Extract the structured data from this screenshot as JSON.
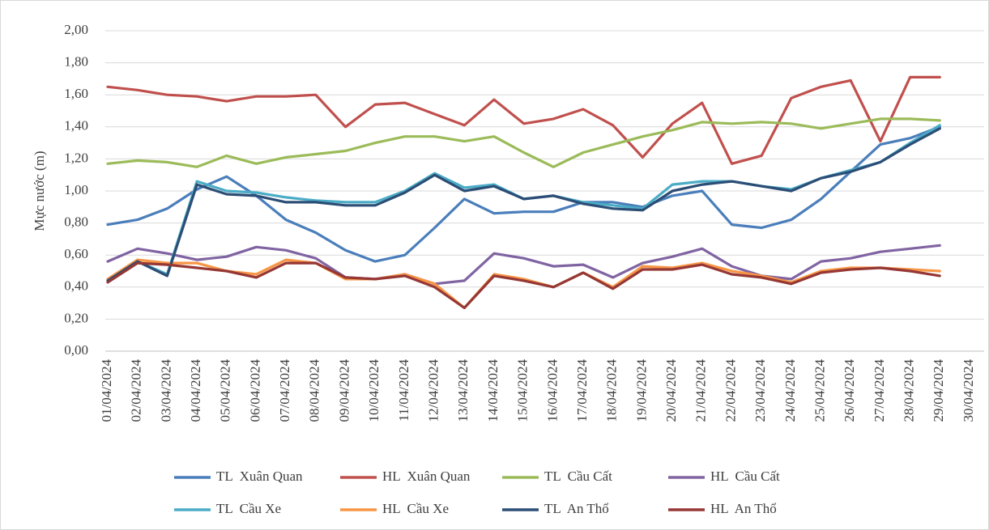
{
  "chart_data": {
    "type": "line",
    "y_label": "Mực nước (m)",
    "categories": [
      "01/04/2024",
      "02/04/2024",
      "03/04/2024",
      "04/04/2024",
      "05/04/2024",
      "06/04/2024",
      "07/04/2024",
      "08/04/2024",
      "09/04/2024",
      "10/04/2024",
      "11/04/2024",
      "12/04/2024",
      "13/04/2024",
      "14/04/2024",
      "15/04/2024",
      "16/04/2024",
      "17/04/2024",
      "18/04/2024",
      "19/04/2024",
      "20/04/2024",
      "21/04/2024",
      "22/04/2024",
      "23/04/2024",
      "24/04/2024",
      "25/04/2024",
      "26/04/2024",
      "27/04/2024",
      "28/04/2024",
      "29/04/2024",
      "30/04/2024"
    ],
    "series": [
      {
        "name": "TL  Xuân Quan",
        "color": "#4a7ebb",
        "values": [
          0.79,
          0.82,
          0.89,
          1.01,
          1.09,
          0.97,
          0.82,
          0.74,
          0.63,
          0.56,
          0.6,
          0.77,
          0.95,
          0.86,
          0.87,
          0.87,
          0.93,
          0.93,
          0.9,
          0.97,
          1.0,
          0.79,
          0.77,
          0.82,
          0.95,
          1.12,
          1.29,
          1.33,
          1.4,
          null
        ]
      },
      {
        "name": "HL  Xuân Quan",
        "color": "#c0504d",
        "values": [
          1.65,
          1.63,
          1.6,
          1.59,
          1.56,
          1.59,
          1.59,
          1.6,
          1.4,
          1.54,
          1.55,
          1.48,
          1.41,
          1.57,
          1.42,
          1.45,
          1.51,
          1.41,
          1.21,
          1.42,
          1.55,
          1.17,
          1.22,
          1.58,
          1.65,
          1.69,
          1.31,
          1.71,
          1.71,
          null
        ]
      },
      {
        "name": "TL  Cầu Cất",
        "color": "#9bbb59",
        "values": [
          1.17,
          1.19,
          1.18,
          1.15,
          1.22,
          1.17,
          1.21,
          1.23,
          1.25,
          1.3,
          1.34,
          1.34,
          1.31,
          1.34,
          1.24,
          1.15,
          1.24,
          1.29,
          1.34,
          1.38,
          1.43,
          1.42,
          1.43,
          1.42,
          1.39,
          1.42,
          1.45,
          1.45,
          1.44,
          null
        ]
      },
      {
        "name": "HL  Cầu Cất",
        "color": "#8064a2",
        "values": [
          0.56,
          0.64,
          0.61,
          0.57,
          0.59,
          0.65,
          0.63,
          0.58,
          0.46,
          0.45,
          0.48,
          0.42,
          0.44,
          0.61,
          0.58,
          0.53,
          0.54,
          0.46,
          0.55,
          0.59,
          0.64,
          0.53,
          0.47,
          0.45,
          0.56,
          0.58,
          0.62,
          0.64,
          0.66,
          null
        ]
      },
      {
        "name": "TL  Cầu Xe",
        "color": "#4bacc6",
        "values": [
          0.44,
          0.56,
          0.48,
          1.06,
          1.0,
          0.99,
          0.96,
          0.94,
          0.93,
          0.93,
          1.0,
          1.11,
          1.02,
          1.04,
          0.95,
          0.97,
          0.93,
          0.91,
          0.89,
          1.04,
          1.06,
          1.06,
          1.03,
          1.01,
          1.08,
          1.13,
          1.18,
          1.3,
          1.41,
          null
        ]
      },
      {
        "name": "HL  Cầu Xe",
        "color": "#f79646",
        "values": [
          0.45,
          0.57,
          0.55,
          0.55,
          0.5,
          0.48,
          0.57,
          0.55,
          0.45,
          0.45,
          0.48,
          0.42,
          0.27,
          0.48,
          0.45,
          0.4,
          0.49,
          0.4,
          0.53,
          0.52,
          0.55,
          0.5,
          0.47,
          0.43,
          0.5,
          0.52,
          0.52,
          0.51,
          0.5,
          null
        ]
      },
      {
        "name": "TL  An Thổ",
        "color": "#2c4d75",
        "values": [
          0.44,
          0.56,
          0.47,
          1.04,
          0.98,
          0.97,
          0.93,
          0.93,
          0.91,
          0.91,
          0.99,
          1.1,
          1.0,
          1.03,
          0.95,
          0.97,
          0.92,
          0.89,
          0.88,
          1.0,
          1.04,
          1.06,
          1.03,
          1.0,
          1.08,
          1.12,
          1.18,
          1.29,
          1.39,
          null
        ]
      },
      {
        "name": "HL  An Thổ",
        "color": "#953735",
        "values": [
          0.43,
          0.55,
          0.54,
          0.52,
          0.5,
          0.46,
          0.55,
          0.55,
          0.46,
          0.45,
          0.47,
          0.4,
          0.27,
          0.47,
          0.44,
          0.4,
          0.49,
          0.39,
          0.51,
          0.51,
          0.54,
          0.48,
          0.46,
          0.42,
          0.49,
          0.51,
          0.52,
          0.5,
          0.47,
          null
        ]
      }
    ],
    "ylim": [
      0,
      2
    ],
    "yticks": [
      {
        "value": 0,
        "label": "0,00"
      },
      {
        "value": 0.2,
        "label": "0,20"
      },
      {
        "value": 0.4,
        "label": "0,40"
      },
      {
        "value": 0.6,
        "label": "0,60"
      },
      {
        "value": 0.8,
        "label": "0,80"
      },
      {
        "value": 1,
        "label": "1,00"
      },
      {
        "value": 1.2,
        "label": "1,20"
      },
      {
        "value": 1.4,
        "label": "1,40"
      },
      {
        "value": 1.6,
        "label": "1,60"
      },
      {
        "value": 1.8,
        "label": "1,80"
      },
      {
        "value": 2,
        "label": "2,00"
      }
    ],
    "grid": true,
    "legend": "bottom"
  }
}
